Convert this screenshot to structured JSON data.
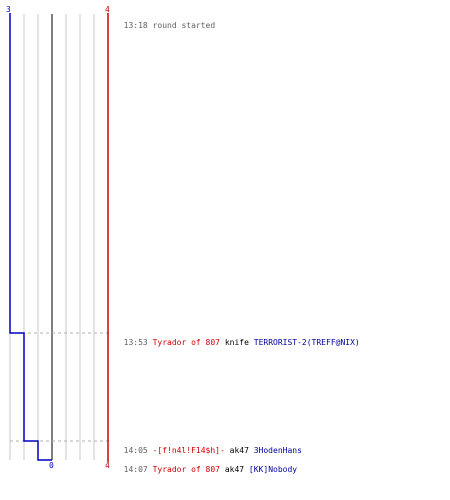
{
  "colors": {
    "ct": "#0000c0",
    "t": "#d00000",
    "grid": "#c8c8c8",
    "center": "#808080",
    "marker": "#b0b0b0",
    "time": "#606060"
  },
  "scores": {
    "ct_start": "3",
    "t_start": "4",
    "ct_end": "0",
    "t_end": "4"
  },
  "events": [
    {
      "time": "13:18",
      "text": "round started"
    },
    {
      "time": "13:53",
      "killer": "Tyrador of 807",
      "killer_team": "t",
      "weapon": "knife",
      "victim": "TERRORIST-2(TREFF@NIX)",
      "victim_team": "ct"
    },
    {
      "time": "14:05",
      "killer": "-[f!n4l!F14$h]-",
      "killer_team": "t",
      "weapon": "ak47",
      "victim": "3HodenHans",
      "victim_team": "ct"
    },
    {
      "time": "14:07",
      "killer": "Tyrador of 807",
      "killer_team": "t",
      "weapon": "ak47",
      "victim": "[KK]Nobody",
      "victim_team": "ct"
    }
  ]
}
